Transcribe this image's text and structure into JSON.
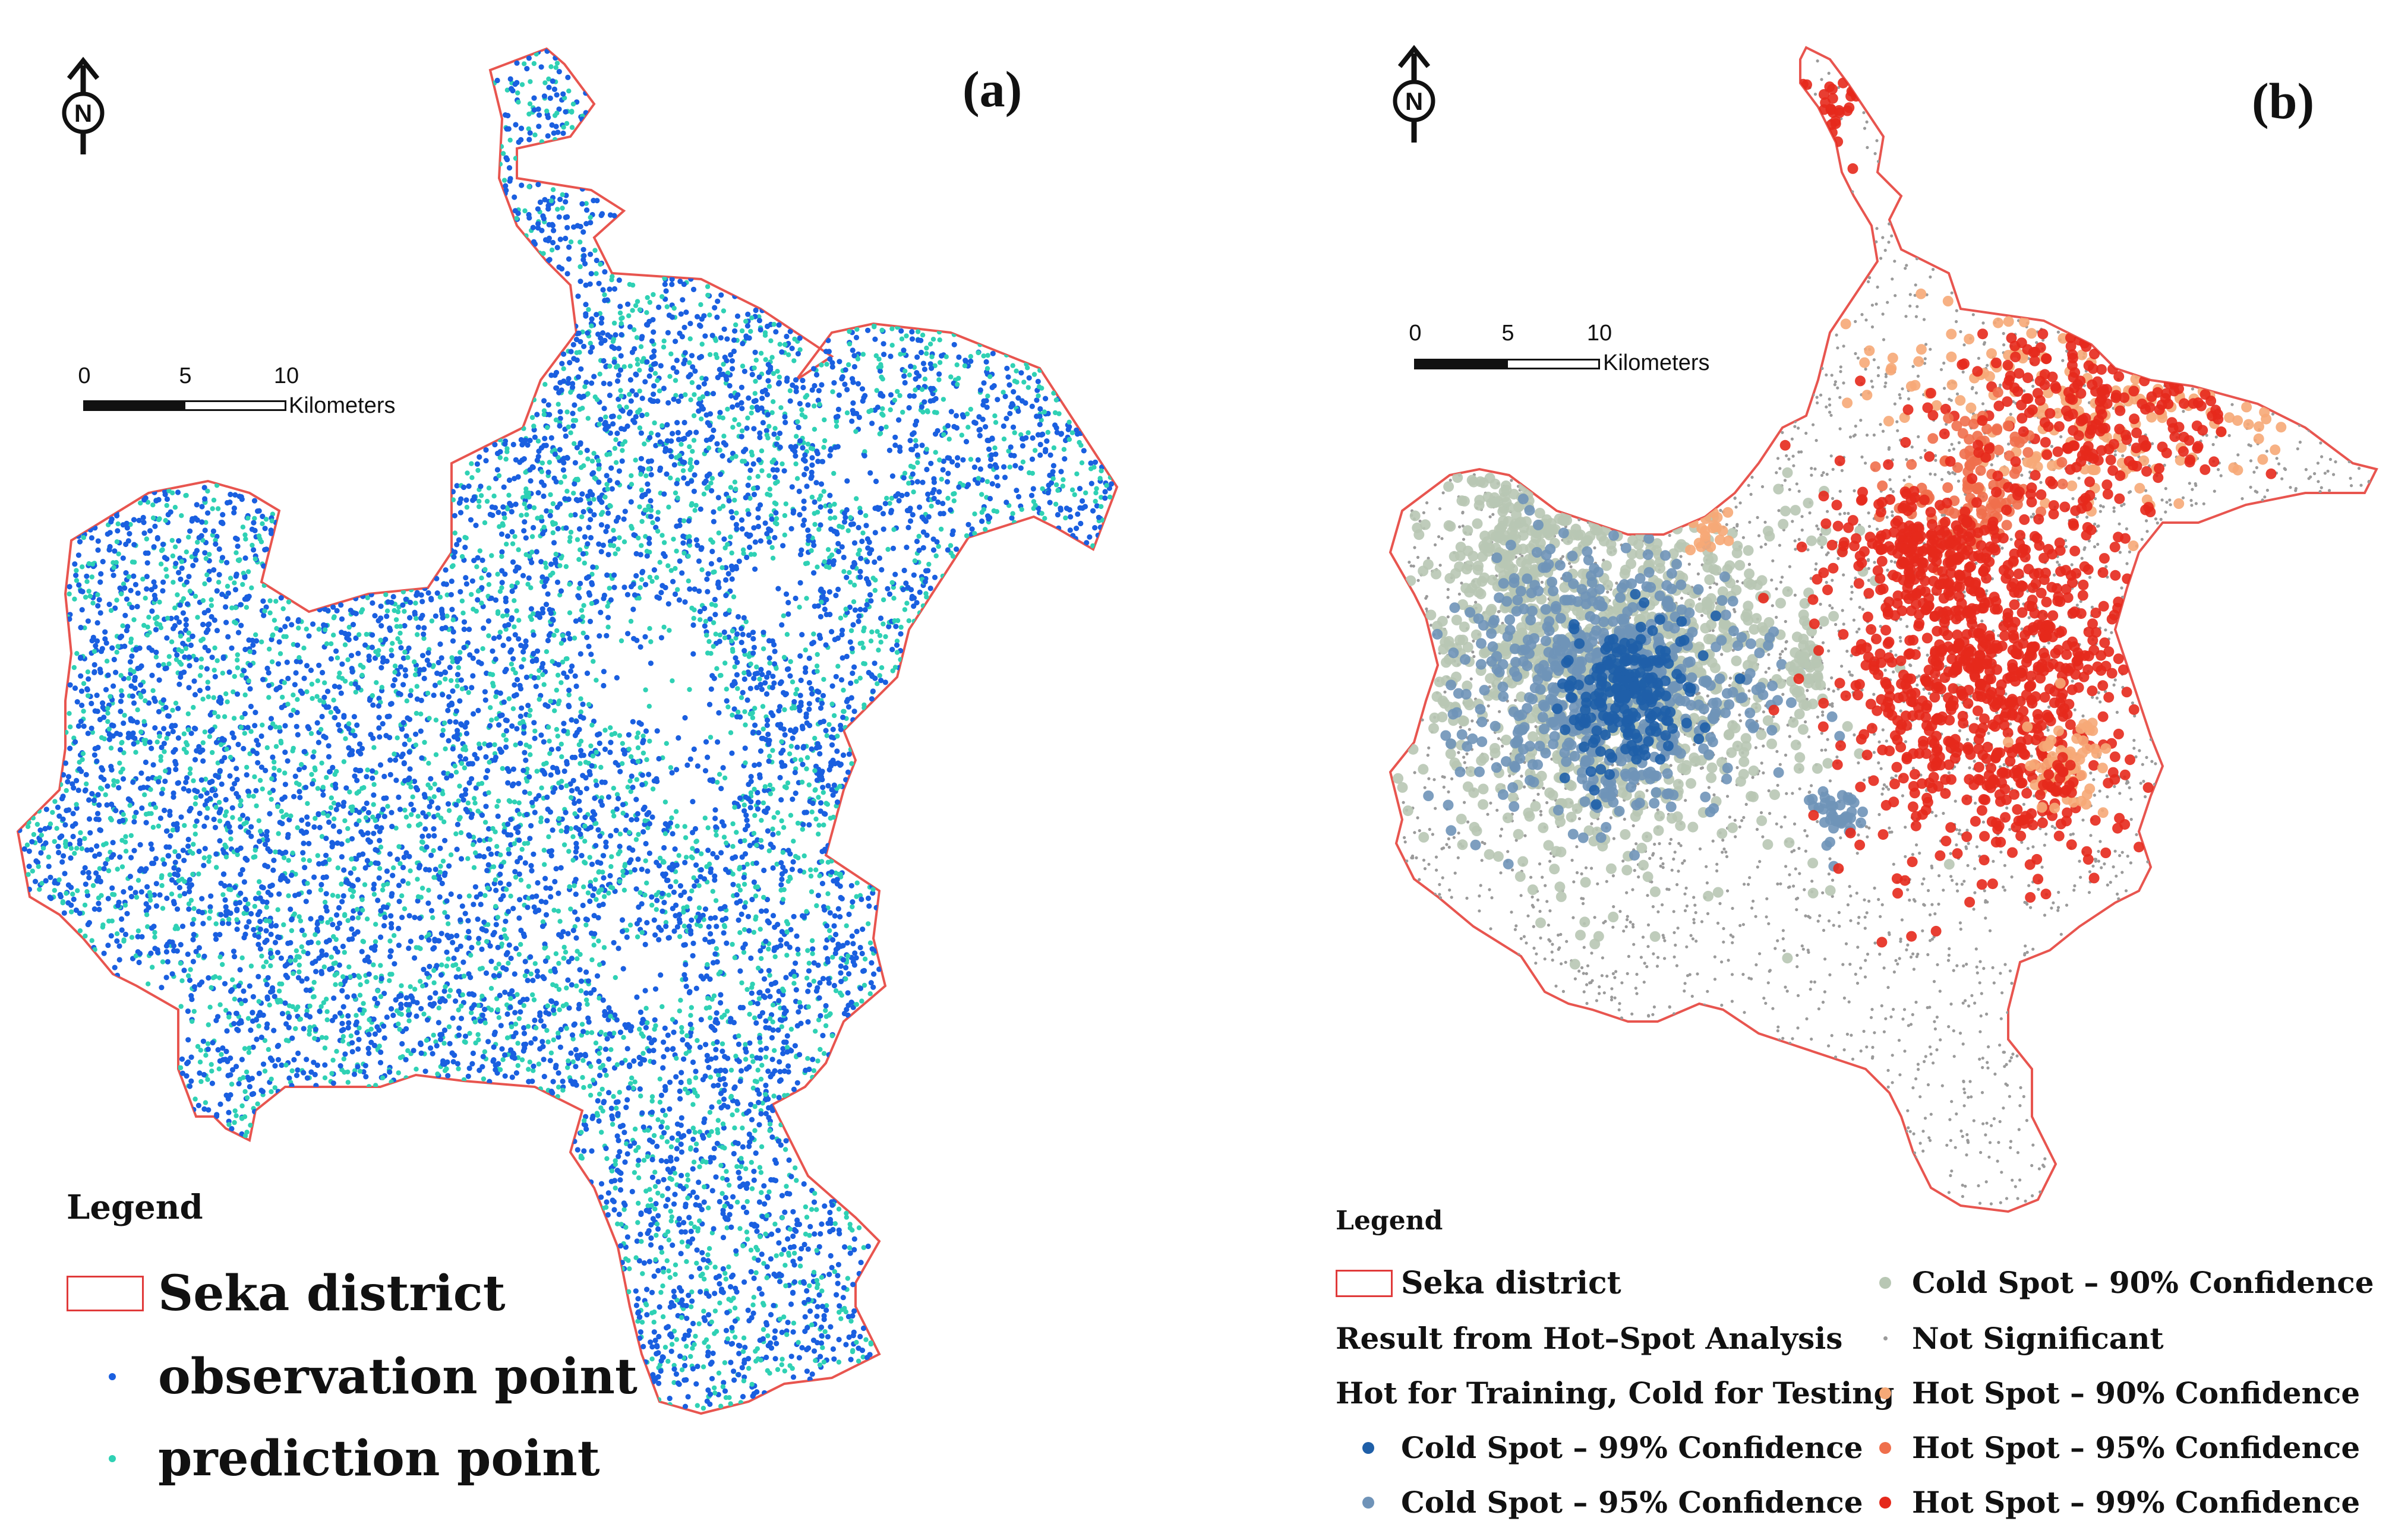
{
  "panel_a": {
    "label": "(a)",
    "scale": {
      "ticks": [
        "0",
        "5",
        "10"
      ],
      "unit": "Kilometers"
    },
    "legend": {
      "title": "Legend",
      "items": [
        {
          "label": "Seka district",
          "kind": "box",
          "color": "#e03a3a"
        },
        {
          "label": "observation point",
          "kind": "dot",
          "color": "#1a5fe0"
        },
        {
          "label": "prediction point",
          "kind": "dot",
          "color": "#2fd1b4"
        }
      ]
    }
  },
  "panel_b": {
    "label": "(b)",
    "scale": {
      "ticks": [
        "0",
        "5",
        "10"
      ],
      "unit": "Kilometers"
    },
    "legend": {
      "title": "Legend",
      "district": "Seka district",
      "result_heading": "Result from Hot–Spot Analysis",
      "subheading": "Hot for Training, Cold for Testing",
      "classes": [
        {
          "label": "Cold Spot – 99% Confidence",
          "color": "#1f5fa8"
        },
        {
          "label": "Cold Spot – 95% Confidence",
          "color": "#6f93b8"
        },
        {
          "label": "Cold Spot – 90% Confidence",
          "color": "#b8c7b4"
        },
        {
          "label": "Not Significant",
          "color": "#9a9a9a"
        },
        {
          "label": "Hot Spot – 90% Confidence",
          "color": "#f6a977"
        },
        {
          "label": "Hot Spot – 95% Confidence",
          "color": "#ef6f4c"
        },
        {
          "label": "Hot Spot – 99% Confidence",
          "color": "#e5291c"
        }
      ]
    }
  },
  "colors": {
    "boundary": "#e8554f"
  },
  "north_arrow": {
    "letter": "N"
  }
}
